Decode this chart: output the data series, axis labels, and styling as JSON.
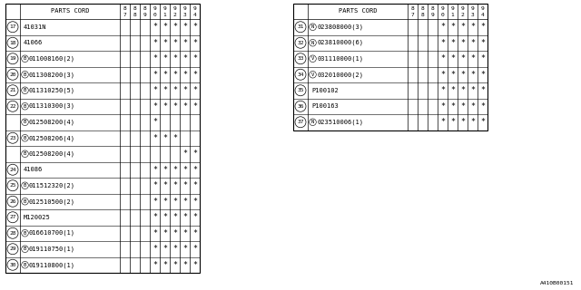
{
  "title": "A410B00151",
  "years": [
    "8\n7",
    "8\n8",
    "8\n9",
    "9\n0",
    "9\n1",
    "9\n2",
    "9\n3",
    "9\n4"
  ],
  "left_table": {
    "rows": [
      {
        "num": "17",
        "prefix": "",
        "part": "41031N",
        "marks": [
          0,
          0,
          0,
          1,
          1,
          1,
          1,
          1
        ]
      },
      {
        "num": "18",
        "prefix": "",
        "part": "41066",
        "marks": [
          0,
          0,
          0,
          1,
          1,
          1,
          1,
          1
        ]
      },
      {
        "num": "19",
        "prefix": "B",
        "part": "011008160(2)",
        "marks": [
          0,
          0,
          0,
          1,
          1,
          1,
          1,
          1
        ]
      },
      {
        "num": "20",
        "prefix": "B",
        "part": "011308200(3)",
        "marks": [
          0,
          0,
          0,
          1,
          1,
          1,
          1,
          1
        ]
      },
      {
        "num": "21",
        "prefix": "B",
        "part": "011310250(5)",
        "marks": [
          0,
          0,
          0,
          1,
          1,
          1,
          1,
          1
        ]
      },
      {
        "num": "22",
        "prefix": "B",
        "part": "011310300(3)",
        "marks": [
          0,
          0,
          0,
          1,
          1,
          1,
          1,
          1
        ]
      },
      {
        "num": "",
        "prefix": "B",
        "part": "012508200(4)",
        "marks": [
          0,
          0,
          0,
          1,
          0,
          0,
          0,
          0
        ]
      },
      {
        "num": "23",
        "prefix": "B",
        "part": "012508206(4)",
        "marks": [
          0,
          0,
          0,
          1,
          1,
          1,
          0,
          0
        ]
      },
      {
        "num": "",
        "prefix": "B",
        "part": "012508200(4)",
        "marks": [
          0,
          0,
          0,
          0,
          0,
          0,
          1,
          1
        ]
      },
      {
        "num": "24",
        "prefix": "",
        "part": "41086",
        "marks": [
          0,
          0,
          0,
          1,
          1,
          1,
          1,
          1
        ]
      },
      {
        "num": "25",
        "prefix": "B",
        "part": "011512320(2)",
        "marks": [
          0,
          0,
          0,
          1,
          1,
          1,
          1,
          1
        ]
      },
      {
        "num": "26",
        "prefix": "B",
        "part": "012510500(2)",
        "marks": [
          0,
          0,
          0,
          1,
          1,
          1,
          1,
          1
        ]
      },
      {
        "num": "27",
        "prefix": "",
        "part": "M120025",
        "marks": [
          0,
          0,
          0,
          1,
          1,
          1,
          1,
          1
        ]
      },
      {
        "num": "28",
        "prefix": "B",
        "part": "016610700(1)",
        "marks": [
          0,
          0,
          0,
          1,
          1,
          1,
          1,
          1
        ]
      },
      {
        "num": "29",
        "prefix": "B",
        "part": "019110750(1)",
        "marks": [
          0,
          0,
          0,
          1,
          1,
          1,
          1,
          1
        ]
      },
      {
        "num": "30",
        "prefix": "B",
        "part": "019110800(1)",
        "marks": [
          0,
          0,
          0,
          1,
          1,
          1,
          1,
          1
        ]
      }
    ]
  },
  "right_table": {
    "rows": [
      {
        "num": "31",
        "prefix": "N",
        "part": "023808000(3)",
        "marks": [
          0,
          0,
          0,
          1,
          1,
          1,
          1,
          1
        ]
      },
      {
        "num": "32",
        "prefix": "N",
        "part": "023810000(6)",
        "marks": [
          0,
          0,
          0,
          1,
          1,
          1,
          1,
          1
        ]
      },
      {
        "num": "33",
        "prefix": "V",
        "part": "031110000(1)",
        "marks": [
          0,
          0,
          0,
          1,
          1,
          1,
          1,
          1
        ]
      },
      {
        "num": "34",
        "prefix": "V",
        "part": "032010000(2)",
        "marks": [
          0,
          0,
          0,
          1,
          1,
          1,
          1,
          1
        ]
      },
      {
        "num": "35",
        "prefix": "",
        "part": "P100102",
        "marks": [
          0,
          0,
          0,
          1,
          1,
          1,
          1,
          1
        ]
      },
      {
        "num": "36",
        "prefix": "",
        "part": "P100163",
        "marks": [
          0,
          0,
          0,
          1,
          1,
          1,
          1,
          1
        ]
      },
      {
        "num": "37",
        "prefix": "N",
        "part": "023510006(1)",
        "marks": [
          0,
          0,
          0,
          1,
          1,
          1,
          1,
          1
        ]
      }
    ]
  },
  "bg_color": "#ffffff",
  "line_color": "#000000",
  "text_color": "#000000"
}
